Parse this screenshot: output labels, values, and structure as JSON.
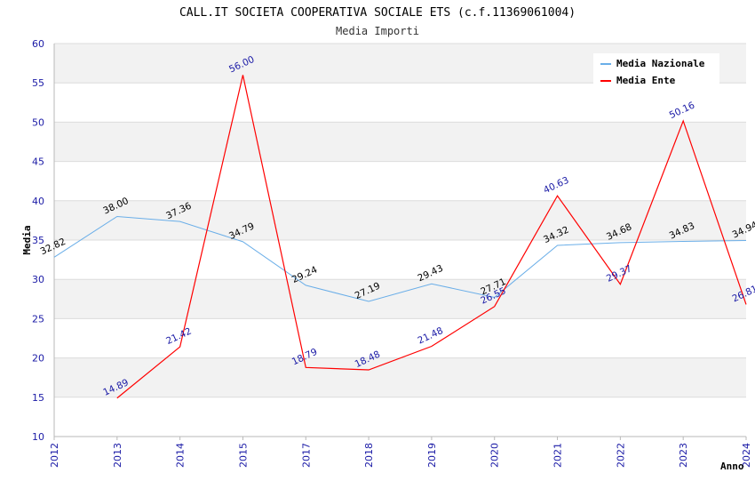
{
  "chart_data": {
    "type": "line",
    "title": "CALL.IT SOCIETA COOPERATIVA SOCIALE ETS (c.f.11369061004)",
    "subtitle": "Media Importi",
    "xlabel": "Anno",
    "ylabel": "Media",
    "ylim": [
      10,
      60
    ],
    "yticks": [
      "10",
      "15",
      "20",
      "25",
      "30",
      "35",
      "40",
      "45",
      "50",
      "55",
      "60"
    ],
    "categories": [
      "2012",
      "2013",
      "2014",
      "2015",
      "2017",
      "2018",
      "2019",
      "2020",
      "2021",
      "2022",
      "2023",
      "2024"
    ],
    "grid": true,
    "legend_position": "top-right",
    "series": [
      {
        "name": "Media Nazionale",
        "color": "#6aaee8",
        "label_color": "#000000",
        "values": [
          32.82,
          38.0,
          37.36,
          34.79,
          29.24,
          27.19,
          29.43,
          27.71,
          34.32,
          34.68,
          34.83,
          34.94
        ],
        "labels": [
          "32.82",
          "38.00",
          "37.36",
          "34.79",
          "29.24",
          "27.19",
          "29.43",
          "27.71",
          "34.32",
          "34.68",
          "34.83",
          "34.94"
        ]
      },
      {
        "name": "Media Ente",
        "color": "#ff0000",
        "label_color": "#1a1aa6",
        "values": [
          null,
          14.89,
          21.42,
          56.0,
          18.79,
          18.48,
          21.48,
          26.55,
          40.63,
          29.37,
          50.16,
          26.81
        ],
        "labels": [
          null,
          "14.89",
          "21.42",
          "56.00",
          "18.79",
          "18.48",
          "21.48",
          "26.55",
          "40.63",
          "29.37",
          "50.16",
          "26.81"
        ]
      }
    ]
  }
}
